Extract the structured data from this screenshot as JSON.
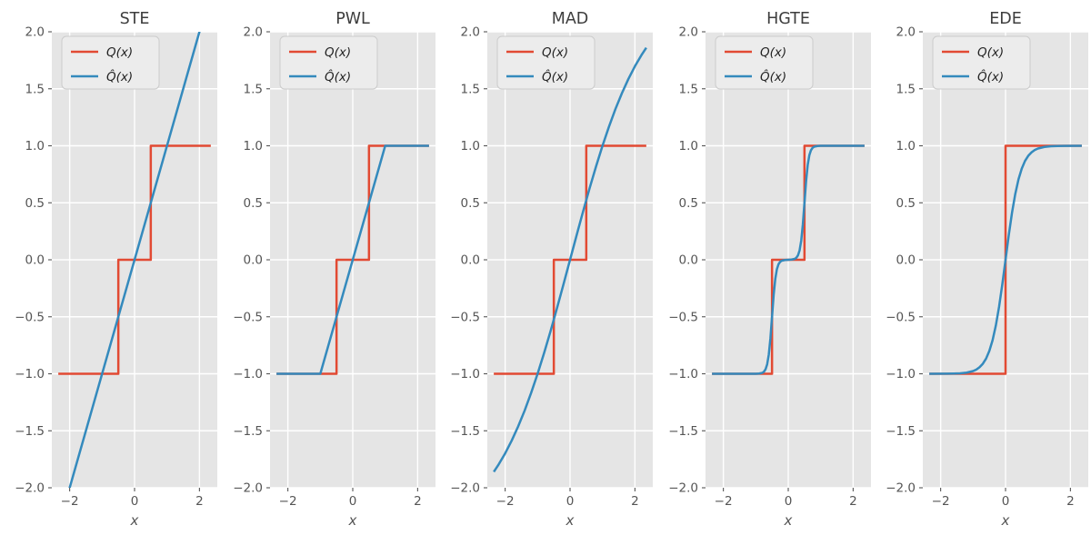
{
  "figure": {
    "background": "#ffffff",
    "description": "Row of five quantizer plots comparing the quantization function Q(x) with smooth/surrogate approximations Q-hat(x)"
  },
  "style": {
    "axes_bg": "#e5e5e5",
    "grid_color": "#ffffff",
    "tick_color": "#555555",
    "title_color": "#3d3d3d",
    "label_color": "#555555",
    "legend_bg": "#ececec",
    "legend_border": "#cccccc",
    "legend_text": "#222222",
    "q_color": "#e24a33",
    "qhat_color": "#348abd"
  },
  "chart_data": {
    "type": "line",
    "layout": "1 row x 5 subplot grid",
    "shared": {
      "xlabel": "x",
      "xlim": [
        -2.55,
        2.55
      ],
      "ylim": [
        -2.0,
        2.0
      ],
      "xticks": [
        -2,
        0,
        2
      ],
      "xtick_labels": [
        "−2",
        "0",
        "2"
      ],
      "yticks": [
        2.0,
        1.5,
        1.0,
        0.5,
        0.0,
        -0.5,
        -1.0,
        -1.5,
        -2.0
      ],
      "ytick_labels": [
        "2.0",
        "1.5",
        "1.0",
        "0.5",
        "0.0",
        "−0.5",
        "−1.0",
        "−1.5",
        "−2.0"
      ],
      "grid": true,
      "legend_position": "upper left",
      "legend_entries": [
        {
          "label": "Q(x)",
          "color": "#e24a33"
        },
        {
          "label": "Q̂(x)",
          "color": "#348abd"
        }
      ]
    },
    "subplots": [
      {
        "title": "STE",
        "series": [
          {
            "name": "Q(x)",
            "color": "#e24a33",
            "points": [
              [
                -2.35,
                -1
              ],
              [
                -0.5,
                -1
              ],
              [
                -0.5,
                0
              ],
              [
                0.5,
                0
              ],
              [
                0.5,
                1
              ],
              [
                2.35,
                1
              ]
            ]
          },
          {
            "name": "Q̂(x)",
            "color": "#348abd",
            "points": [
              [
                -2.35,
                -2.35
              ],
              [
                2.35,
                2.35
              ]
            ]
          }
        ]
      },
      {
        "title": "PWL",
        "series": [
          {
            "name": "Q(x)",
            "color": "#e24a33",
            "points": [
              [
                -2.35,
                -1
              ],
              [
                -0.5,
                -1
              ],
              [
                -0.5,
                0
              ],
              [
                0.5,
                0
              ],
              [
                0.5,
                1
              ],
              [
                2.35,
                1
              ]
            ]
          },
          {
            "name": "Q̂(x)",
            "color": "#348abd",
            "points": [
              [
                -2.35,
                -1
              ],
              [
                -1,
                -1
              ],
              [
                1,
                1
              ],
              [
                2.35,
                1
              ]
            ]
          }
        ]
      },
      {
        "title": "MAD",
        "series": [
          {
            "name": "Q(x)",
            "color": "#e24a33",
            "points": [
              [
                -2.35,
                -1
              ],
              [
                -0.5,
                -1
              ],
              [
                -0.5,
                0
              ],
              [
                0.5,
                0
              ],
              [
                0.5,
                1
              ],
              [
                2.35,
                1
              ]
            ]
          },
          {
            "name": "Q̂(x)",
            "color": "#348abd",
            "points": [
              [
                -2.35,
                -1.86
              ],
              [
                -2.2,
                -1.795
              ],
              [
                -2,
                -1.698
              ],
              [
                -1.8,
                -1.587
              ],
              [
                -1.6,
                -1.462
              ],
              [
                -1.4,
                -1.323
              ],
              [
                -1.2,
                -1.168
              ],
              [
                -1,
                -1
              ],
              [
                -0.8,
                -0.818
              ],
              [
                -0.6,
                -0.625
              ],
              [
                -0.4,
                -0.422
              ],
              [
                -0.2,
                -0.213
              ],
              [
                0,
                0
              ],
              [
                0.2,
                0.213
              ],
              [
                0.4,
                0.422
              ],
              [
                0.6,
                0.625
              ],
              [
                0.8,
                0.818
              ],
              [
                1,
                1
              ],
              [
                1.2,
                1.168
              ],
              [
                1.4,
                1.323
              ],
              [
                1.6,
                1.462
              ],
              [
                1.8,
                1.587
              ],
              [
                2,
                1.698
              ],
              [
                2.2,
                1.795
              ],
              [
                2.35,
                1.86
              ]
            ]
          }
        ]
      },
      {
        "title": "HGTE",
        "series": [
          {
            "name": "Q(x)",
            "color": "#e24a33",
            "points": [
              [
                -2.35,
                -1
              ],
              [
                -0.5,
                -1
              ],
              [
                -0.5,
                0
              ],
              [
                0.5,
                0
              ],
              [
                0.5,
                1
              ],
              [
                2.35,
                1
              ]
            ]
          },
          {
            "name": "Q̂(x)",
            "color": "#348abd",
            "points": [
              [
                -2.35,
                -1
              ],
              [
                -1.2,
                -1
              ],
              [
                -1,
                -0.9995
              ],
              [
                -0.9,
                -0.998
              ],
              [
                -0.8,
                -0.992
              ],
              [
                -0.75,
                -0.982
              ],
              [
                -0.7,
                -0.961
              ],
              [
                -0.65,
                -0.917
              ],
              [
                -0.6,
                -0.832
              ],
              [
                -0.55,
                -0.69
              ],
              [
                -0.5,
                -0.5
              ],
              [
                -0.45,
                -0.31
              ],
              [
                -0.4,
                -0.168
              ],
              [
                -0.35,
                -0.083
              ],
              [
                -0.3,
                -0.039
              ],
              [
                -0.25,
                -0.018
              ],
              [
                -0.2,
                -0.008
              ],
              [
                -0.1,
                -0.002
              ],
              [
                0,
                0
              ],
              [
                0.1,
                0.002
              ],
              [
                0.2,
                0.008
              ],
              [
                0.25,
                0.018
              ],
              [
                0.3,
                0.039
              ],
              [
                0.35,
                0.083
              ],
              [
                0.4,
                0.168
              ],
              [
                0.45,
                0.31
              ],
              [
                0.5,
                0.5
              ],
              [
                0.55,
                0.69
              ],
              [
                0.6,
                0.832
              ],
              [
                0.65,
                0.917
              ],
              [
                0.7,
                0.961
              ],
              [
                0.75,
                0.982
              ],
              [
                0.8,
                0.992
              ],
              [
                0.9,
                0.998
              ],
              [
                1,
                0.9995
              ],
              [
                1.2,
                1
              ],
              [
                2.35,
                1
              ]
            ]
          }
        ]
      },
      {
        "title": "EDE",
        "series": [
          {
            "name": "Q(x)",
            "color": "#e24a33",
            "points": [
              [
                -2.35,
                -1
              ],
              [
                0,
                -1
              ],
              [
                0,
                1
              ],
              [
                2.35,
                1
              ]
            ]
          },
          {
            "name": "Q̂(x)",
            "color": "#348abd",
            "points": [
              [
                -2.35,
                -1
              ],
              [
                -1.8,
                -0.999
              ],
              [
                -1.6,
                -0.998
              ],
              [
                -1.4,
                -0.996
              ],
              [
                -1.2,
                -0.99
              ],
              [
                -1,
                -0.976
              ],
              [
                -0.9,
                -0.963
              ],
              [
                -0.8,
                -0.942
              ],
              [
                -0.7,
                -0.912
              ],
              [
                -0.6,
                -0.867
              ],
              [
                -0.5,
                -0.8
              ],
              [
                -0.4,
                -0.706
              ],
              [
                -0.3,
                -0.578
              ],
              [
                -0.2,
                -0.414
              ],
              [
                -0.1,
                -0.217
              ],
              [
                0,
                0
              ],
              [
                0.1,
                0.217
              ],
              [
                0.2,
                0.414
              ],
              [
                0.3,
                0.578
              ],
              [
                0.4,
                0.706
              ],
              [
                0.5,
                0.8
              ],
              [
                0.6,
                0.867
              ],
              [
                0.7,
                0.912
              ],
              [
                0.8,
                0.942
              ],
              [
                0.9,
                0.963
              ],
              [
                1,
                0.976
              ],
              [
                1.2,
                0.99
              ],
              [
                1.4,
                0.996
              ],
              [
                1.6,
                0.998
              ],
              [
                1.8,
                0.999
              ],
              [
                2.35,
                1
              ]
            ]
          }
        ]
      }
    ]
  }
}
